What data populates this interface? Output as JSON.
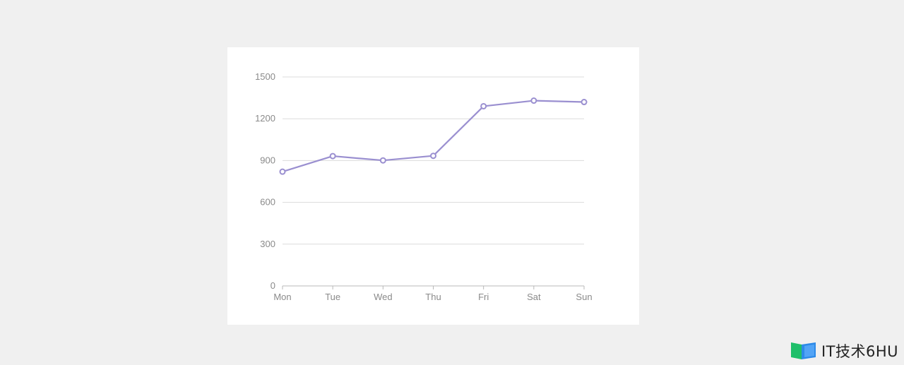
{
  "chart_data": {
    "type": "line",
    "categories": [
      "Mon",
      "Tue",
      "Wed",
      "Thu",
      "Fri",
      "Sat",
      "Sun"
    ],
    "series": [
      {
        "values": [
          820,
          932,
          901,
          934,
          1290,
          1330,
          1320
        ]
      }
    ],
    "yticks": [
      "0",
      "300",
      "600",
      "900",
      "1200",
      "1500"
    ],
    "ylim": [
      0,
      1500
    ],
    "grid": "horizontal",
    "title": "",
    "xlabel": "",
    "ylabel": "",
    "colors": {
      "line": "#9a8fd0",
      "grid": "#dcdcdc",
      "axis": "#b8b8b8",
      "tick_text": "#8a8a8a"
    }
  },
  "watermark": {
    "text": "IT技术6HU",
    "icon": "book-logo-icon"
  }
}
